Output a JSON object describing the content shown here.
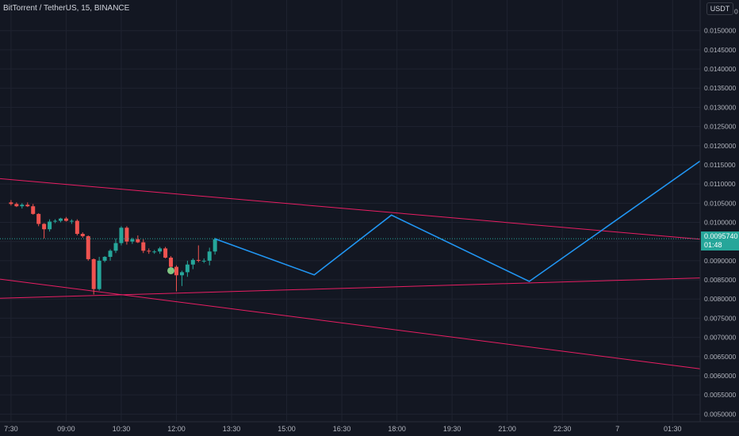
{
  "header": {
    "title": "BitTorrent / TetherUS, 15, BINANCE",
    "currency": "USDT"
  },
  "price_badge": {
    "price": "0.0095740",
    "countdown": "01:48"
  },
  "colors": {
    "background": "#131722",
    "grid": "#1f2330",
    "axis_text": "#b2b5be",
    "up": "#26a69a",
    "down": "#ef5350",
    "trendline": "#e91e63",
    "projection": "#2196f3",
    "marker": "#81c784"
  },
  "chart_data": {
    "type": "candlestick",
    "y_axis": {
      "min": 0.0048,
      "max": 0.0158,
      "ticks": [
        "0.0050000",
        "0.0055000",
        "0.0060000",
        "0.0065000",
        "0.0070000",
        "0.0075000",
        "0.0080000",
        "0.0085000",
        "0.0090000",
        "0.0095000",
        "0.0100000",
        "0.0105000",
        "0.0110000",
        "0.0115000",
        "0.0120000",
        "0.0125000",
        "0.0130000",
        "0.0135000",
        "0.0140000",
        "0.0145000",
        "0.0150000"
      ],
      "top_tick_partial": "0"
    },
    "x_axis": {
      "start_bar": -2,
      "end_bar": 125,
      "ticks": [
        {
          "bar": 0,
          "label": "7:30"
        },
        {
          "bar": 10,
          "label": "09:00"
        },
        {
          "bar": 20,
          "label": "10:30"
        },
        {
          "bar": 30,
          "label": "12:00"
        },
        {
          "bar": 40,
          "label": "13:30"
        },
        {
          "bar": 50,
          "label": "15:00"
        },
        {
          "bar": 60,
          "label": "16:30"
        },
        {
          "bar": 70,
          "label": "18:00"
        },
        {
          "bar": 80,
          "label": "19:30"
        },
        {
          "bar": 90,
          "label": "21:00"
        },
        {
          "bar": 100,
          "label": "22:30"
        },
        {
          "bar": 110,
          "label": "7"
        },
        {
          "bar": 120,
          "label": "01:30"
        }
      ]
    },
    "candles": [
      {
        "bar": 0,
        "o": 0.01052,
        "h": 0.01058,
        "l": 0.01044,
        "c": 0.01048
      },
      {
        "bar": 1,
        "o": 0.01048,
        "h": 0.01052,
        "l": 0.0104,
        "c": 0.01042
      },
      {
        "bar": 2,
        "o": 0.01042,
        "h": 0.0105,
        "l": 0.01036,
        "c": 0.01046
      },
      {
        "bar": 3,
        "o": 0.01046,
        "h": 0.01052,
        "l": 0.0104,
        "c": 0.01042
      },
      {
        "bar": 4,
        "o": 0.01042,
        "h": 0.01048,
        "l": 0.0102,
        "c": 0.01022
      },
      {
        "bar": 5,
        "o": 0.01022,
        "h": 0.01024,
        "l": 0.0099,
        "c": 0.00996
      },
      {
        "bar": 6,
        "o": 0.00996,
        "h": 0.00998,
        "l": 0.00958,
        "c": 0.00982
      },
      {
        "bar": 7,
        "o": 0.00982,
        "h": 0.01008,
        "l": 0.00976,
        "c": 0.01002
      },
      {
        "bar": 8,
        "o": 0.01002,
        "h": 0.01008,
        "l": 0.00998,
        "c": 0.01004
      },
      {
        "bar": 9,
        "o": 0.01004,
        "h": 0.01012,
        "l": 0.01,
        "c": 0.0101
      },
      {
        "bar": 10,
        "o": 0.0101,
        "h": 0.01014,
        "l": 0.01002,
        "c": 0.01004
      },
      {
        "bar": 11,
        "o": 0.01004,
        "h": 0.01008,
        "l": 0.00996,
        "c": 0.01004
      },
      {
        "bar": 12,
        "o": 0.01004,
        "h": 0.01008,
        "l": 0.00966,
        "c": 0.0097
      },
      {
        "bar": 13,
        "o": 0.0097,
        "h": 0.00974,
        "l": 0.0096,
        "c": 0.00964
      },
      {
        "bar": 14,
        "o": 0.00964,
        "h": 0.00966,
        "l": 0.009,
        "c": 0.00904
      },
      {
        "bar": 15,
        "o": 0.00904,
        "h": 0.00906,
        "l": 0.00812,
        "c": 0.00826
      },
      {
        "bar": 16,
        "o": 0.00826,
        "h": 0.0091,
        "l": 0.00822,
        "c": 0.009
      },
      {
        "bar": 17,
        "o": 0.009,
        "h": 0.00912,
        "l": 0.00896,
        "c": 0.0091
      },
      {
        "bar": 18,
        "o": 0.0091,
        "h": 0.0093,
        "l": 0.009,
        "c": 0.00926
      },
      {
        "bar": 19,
        "o": 0.00926,
        "h": 0.00958,
        "l": 0.0092,
        "c": 0.00946
      },
      {
        "bar": 20,
        "o": 0.00946,
        "h": 0.0099,
        "l": 0.0094,
        "c": 0.00986
      },
      {
        "bar": 21,
        "o": 0.00986,
        "h": 0.0099,
        "l": 0.00942,
        "c": 0.0095
      },
      {
        "bar": 22,
        "o": 0.0095,
        "h": 0.0096,
        "l": 0.00944,
        "c": 0.00956
      },
      {
        "bar": 23,
        "o": 0.00956,
        "h": 0.00966,
        "l": 0.00946,
        "c": 0.00948
      },
      {
        "bar": 24,
        "o": 0.00948,
        "h": 0.00956,
        "l": 0.0092,
        "c": 0.00926
      },
      {
        "bar": 25,
        "o": 0.00926,
        "h": 0.00932,
        "l": 0.00918,
        "c": 0.00924
      },
      {
        "bar": 26,
        "o": 0.00924,
        "h": 0.00928,
        "l": 0.00918,
        "c": 0.00924
      },
      {
        "bar": 27,
        "o": 0.00924,
        "h": 0.00936,
        "l": 0.00918,
        "c": 0.00932
      },
      {
        "bar": 28,
        "o": 0.00932,
        "h": 0.00936,
        "l": 0.00906,
        "c": 0.00908
      },
      {
        "bar": 29,
        "o": 0.00908,
        "h": 0.00912,
        "l": 0.0088,
        "c": 0.00884
      },
      {
        "bar": 30,
        "o": 0.00884,
        "h": 0.00888,
        "l": 0.0082,
        "c": 0.00862
      },
      {
        "bar": 31,
        "o": 0.00862,
        "h": 0.00874,
        "l": 0.00834,
        "c": 0.0087
      },
      {
        "bar": 32,
        "o": 0.0087,
        "h": 0.009,
        "l": 0.00858,
        "c": 0.0089
      },
      {
        "bar": 33,
        "o": 0.0089,
        "h": 0.00906,
        "l": 0.00878,
        "c": 0.00902
      },
      {
        "bar": 34,
        "o": 0.00902,
        "h": 0.0094,
        "l": 0.00896,
        "c": 0.009
      },
      {
        "bar": 35,
        "o": 0.009,
        "h": 0.00906,
        "l": 0.00894,
        "c": 0.009
      },
      {
        "bar": 36,
        "o": 0.009,
        "h": 0.00934,
        "l": 0.00888,
        "c": 0.00924
      },
      {
        "bar": 37,
        "o": 0.00924,
        "h": 0.0096,
        "l": 0.00916,
        "c": 0.00956
      }
    ],
    "marker": {
      "bar": 29,
      "value": 0.00874
    },
    "projection": {
      "points": [
        {
          "bar": 37,
          "value": 0.00957
        },
        {
          "bar": 55,
          "value": 0.00863
        },
        {
          "bar": 69,
          "value": 0.01019
        },
        {
          "bar": 94,
          "value": 0.00846
        },
        {
          "bar": 125,
          "value": 0.0116
        }
      ]
    },
    "trendlines": [
      {
        "from": {
          "bar": -2,
          "value": 0.01114
        },
        "to": {
          "bar": 125,
          "value": 0.00956
        }
      },
      {
        "from": {
          "bar": -2,
          "value": 0.00802
        },
        "to": {
          "bar": 125,
          "value": 0.00855
        }
      },
      {
        "from": {
          "bar": -2,
          "value": 0.00852
        },
        "to": {
          "bar": 125,
          "value": 0.00618
        }
      }
    ],
    "current_price": 0.009574
  }
}
